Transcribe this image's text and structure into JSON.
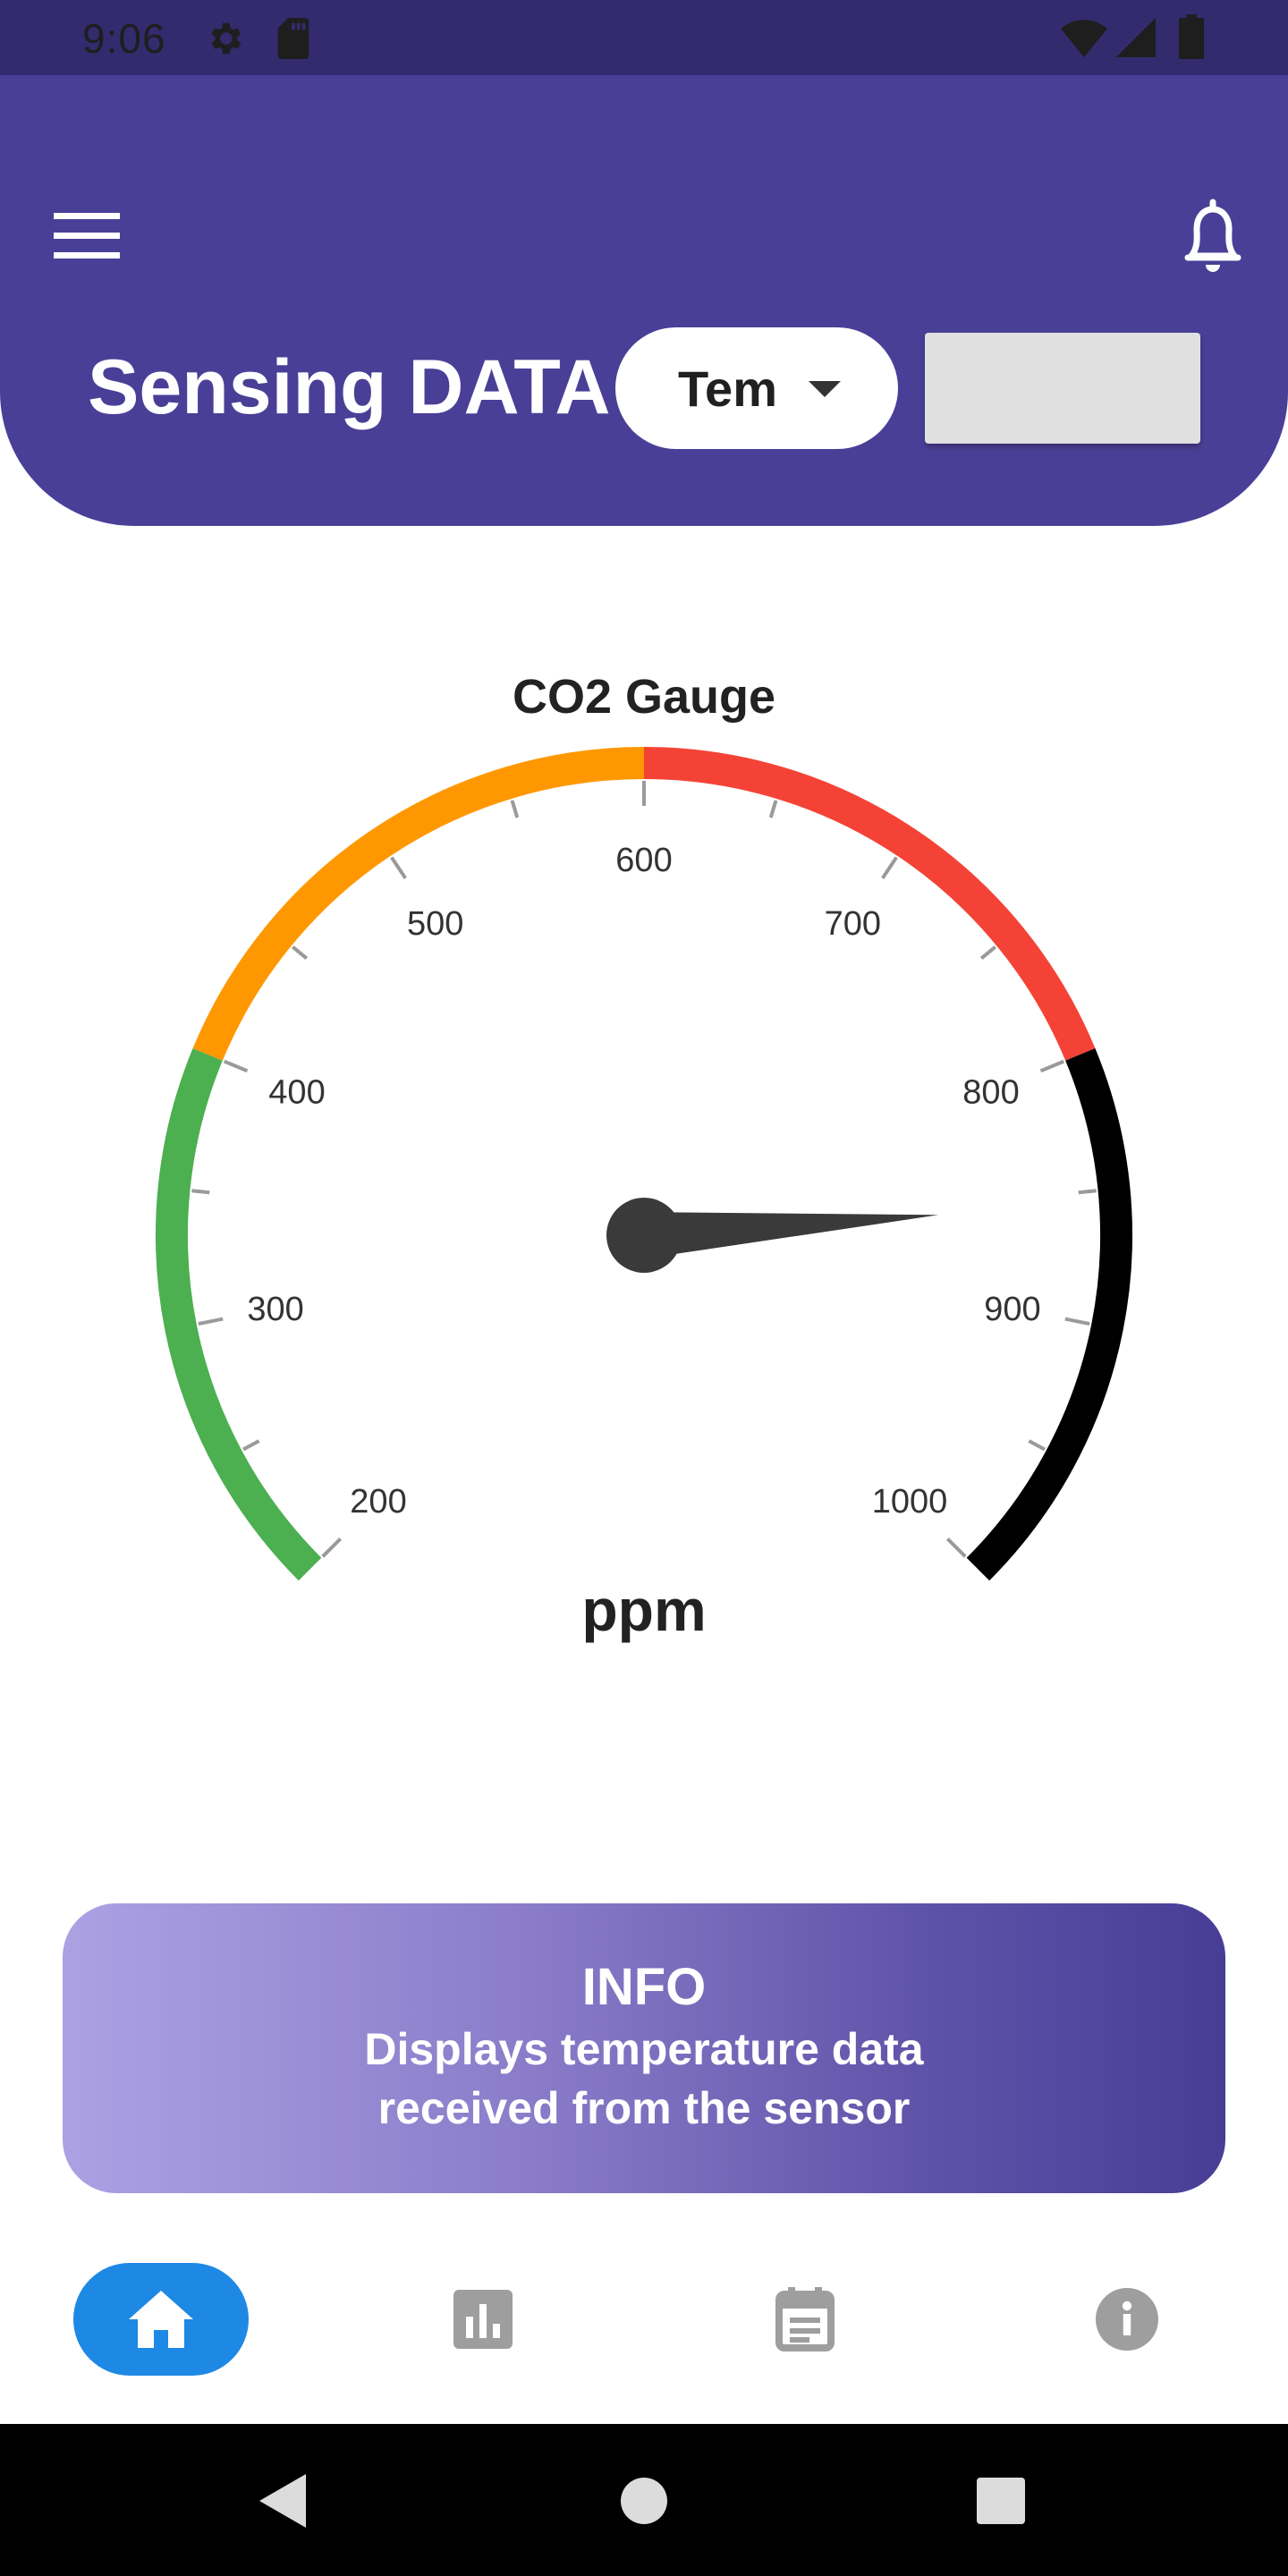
{
  "status_bar": {
    "time": "9:06",
    "left_icons": [
      "gear-icon",
      "sd-card-icon"
    ],
    "right_icons": [
      "wifi-icon",
      "signal-icon",
      "battery-icon"
    ]
  },
  "header": {
    "title": "Sensing DATA",
    "sensor_select": {
      "selected": "Tem"
    },
    "value_box": "",
    "colors": {
      "background": "#4a3f97"
    }
  },
  "gauge": {
    "title": "CO2 Gauge",
    "unit": "ppm",
    "min": 200,
    "max": 1000,
    "tick_labels": [
      "200",
      "300",
      "400",
      "500",
      "600",
      "700",
      "800",
      "900",
      "1000"
    ],
    "bands": [
      {
        "from": 200,
        "to": 400,
        "color": "#4caf50"
      },
      {
        "from": 400,
        "to": 600,
        "color": "#ff9800"
      },
      {
        "from": 600,
        "to": 800,
        "color": "#f44336"
      },
      {
        "from": 800,
        "to": 1000,
        "color": "#000000"
      }
    ],
    "needle_value": 855,
    "needle_color": "#3a3a3a"
  },
  "info_card": {
    "title": "INFO",
    "line1": "Displays temperature data",
    "line2": "received from the sensor"
  },
  "bottom_nav": {
    "items": [
      {
        "icon": "home-icon",
        "active": true
      },
      {
        "icon": "bar-chart-icon",
        "active": false
      },
      {
        "icon": "calendar-icon",
        "active": false
      },
      {
        "icon": "info-icon",
        "active": false
      }
    ],
    "active_color": "#1e88e5"
  },
  "system_nav": {
    "icons": [
      "back-icon",
      "home-circle-icon",
      "recents-icon"
    ]
  }
}
